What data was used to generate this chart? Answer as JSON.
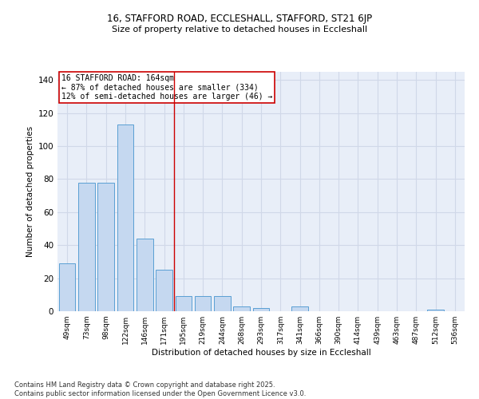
{
  "title1": "16, STAFFORD ROAD, ECCLESHALL, STAFFORD, ST21 6JP",
  "title2": "Size of property relative to detached houses in Eccleshall",
  "xlabel": "Distribution of detached houses by size in Eccleshall",
  "ylabel": "Number of detached properties",
  "categories": [
    "49sqm",
    "73sqm",
    "98sqm",
    "122sqm",
    "146sqm",
    "171sqm",
    "195sqm",
    "219sqm",
    "244sqm",
    "268sqm",
    "293sqm",
    "317sqm",
    "341sqm",
    "366sqm",
    "390sqm",
    "414sqm",
    "439sqm",
    "463sqm",
    "487sqm",
    "512sqm",
    "536sqm"
  ],
  "values": [
    29,
    78,
    78,
    113,
    44,
    25,
    9,
    9,
    9,
    3,
    2,
    0,
    3,
    0,
    0,
    0,
    0,
    0,
    0,
    1,
    0
  ],
  "bar_color": "#c5d8f0",
  "bar_edge_color": "#5a9fd4",
  "grid_color": "#d0d8e8",
  "background_color": "#e8eef8",
  "vline_x": 5.5,
  "vline_color": "#cc0000",
  "annotation_text": "16 STAFFORD ROAD: 164sqm\n← 87% of detached houses are smaller (334)\n12% of semi-detached houses are larger (46) →",
  "annotation_box_color": "#cc0000",
  "footer": "Contains HM Land Registry data © Crown copyright and database right 2025.\nContains public sector information licensed under the Open Government Licence v3.0.",
  "ylim": [
    0,
    145
  ],
  "yticks": [
    0,
    20,
    40,
    60,
    80,
    100,
    120,
    140
  ]
}
